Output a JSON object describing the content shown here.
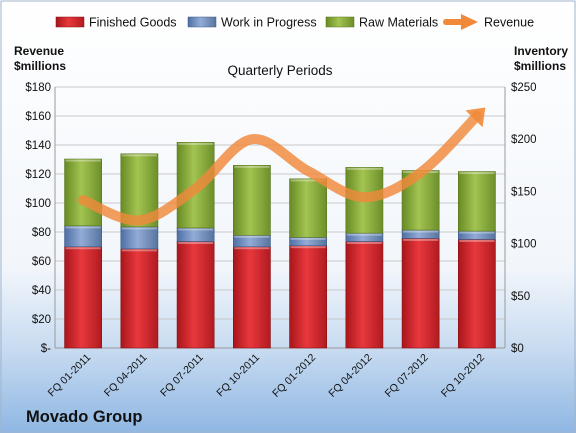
{
  "company": "Movado Group",
  "chart_data": {
    "type": "bar",
    "subtype": "stacked-bar-with-line",
    "title": "Quarterly Periods",
    "categories": [
      "FQ 01-2011",
      "FQ 04-2011",
      "FQ 07-2011",
      "FQ 10-2011",
      "FQ 01-2012",
      "FQ 04-2012",
      "FQ 07-2012",
      "FQ 10-2012"
    ],
    "left_axis": {
      "label_line1": "Revenue",
      "label_line2": "$millions",
      "range": [
        0,
        180
      ],
      "ticks": [
        "$-",
        "$20",
        "$40",
        "$60",
        "$80",
        "$100",
        "$120",
        "$140",
        "$160",
        "$180"
      ],
      "tick_values": [
        0,
        20,
        40,
        60,
        80,
        100,
        120,
        140,
        160,
        180
      ]
    },
    "right_axis": {
      "label_line1": "Inventory",
      "label_line2": "$millions",
      "range": [
        0,
        250
      ],
      "ticks": [
        "$0",
        "$50",
        "$100",
        "$150",
        "$200",
        "$250"
      ],
      "tick_values": [
        0,
        50,
        100,
        150,
        200,
        250
      ]
    },
    "series": [
      {
        "name": "Finished Goods",
        "axis": "right",
        "kind": "bar",
        "color": "#d6252b",
        "values": [
          97,
          95,
          102,
          97,
          98,
          102,
          105,
          104
        ]
      },
      {
        "name": "Work in Progress",
        "axis": "right",
        "kind": "bar",
        "color": "#6f8fc4",
        "values": [
          20,
          21,
          13,
          11,
          8,
          8,
          8,
          8
        ]
      },
      {
        "name": "Raw Materials",
        "axis": "right",
        "kind": "bar",
        "color": "#8aad3a",
        "values": [
          64,
          70,
          82,
          67,
          56,
          63,
          57,
          57
        ]
      },
      {
        "name": "Revenue",
        "axis": "left",
        "kind": "line",
        "color": "#f0893a",
        "values": [
          102,
          88,
          110,
          144,
          122,
          104,
          121,
          160
        ]
      }
    ],
    "grid": true,
    "legend_position": "top"
  }
}
